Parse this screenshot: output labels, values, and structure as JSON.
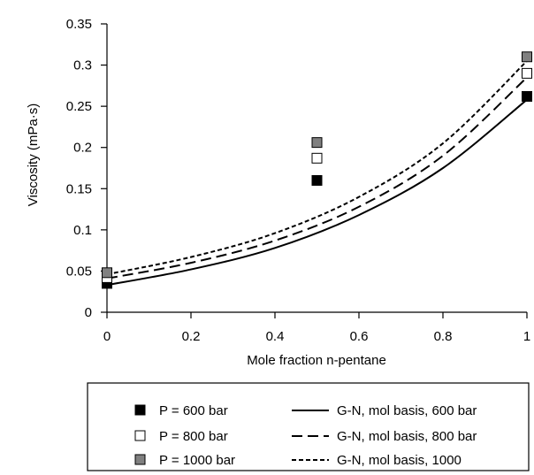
{
  "chart_data": {
    "type": "scatter",
    "xlabel": "Mole fraction n-pentane",
    "ylabel": "Viscosity (mPa·s)",
    "xlim": [
      0,
      1
    ],
    "ylim": [
      0,
      0.35
    ],
    "xticks": [
      "0",
      "0.2",
      "0.4",
      "0.6",
      "0.8",
      "1"
    ],
    "yticks": [
      "0",
      "0.05",
      "0.1",
      "0.15",
      "0.2",
      "0.25",
      "0.3",
      "0.35"
    ],
    "grid": false,
    "legend_position": "bottom",
    "series": [
      {
        "name": "P = 600 bar",
        "kind": "points",
        "marker": "square-black",
        "color": "#000000",
        "x": [
          0,
          0.5,
          1
        ],
        "y": [
          0.035,
          0.16,
          0.262
        ]
      },
      {
        "name": "P = 800 bar",
        "kind": "points",
        "marker": "square-white",
        "color": "#ffffff",
        "x": [
          0,
          0.5,
          1
        ],
        "y": [
          0.042,
          0.187,
          0.29
        ]
      },
      {
        "name": "P = 1000 bar",
        "kind": "points",
        "marker": "square-gray",
        "color": "#808080",
        "x": [
          0,
          0.5,
          1
        ],
        "y": [
          0.048,
          0.206,
          0.31
        ]
      },
      {
        "name": "G-N, mol basis, 600 bar",
        "kind": "line",
        "dash": "solid",
        "x": [
          0,
          0.2,
          0.4,
          0.6,
          0.8,
          1
        ],
        "y": [
          0.033,
          0.052,
          0.078,
          0.118,
          0.175,
          0.258
        ]
      },
      {
        "name": "G-N, mol basis, 800 bar",
        "kind": "line",
        "dash": "dashed",
        "x": [
          0,
          0.2,
          0.4,
          0.6,
          0.8,
          1
        ],
        "y": [
          0.041,
          0.06,
          0.087,
          0.128,
          0.19,
          0.285
        ]
      },
      {
        "name": "G-N, mol basis, 1000",
        "kind": "line",
        "dash": "dotted",
        "x": [
          0,
          0.2,
          0.4,
          0.6,
          0.8,
          1
        ],
        "y": [
          0.046,
          0.067,
          0.096,
          0.14,
          0.205,
          0.305
        ]
      }
    ]
  }
}
